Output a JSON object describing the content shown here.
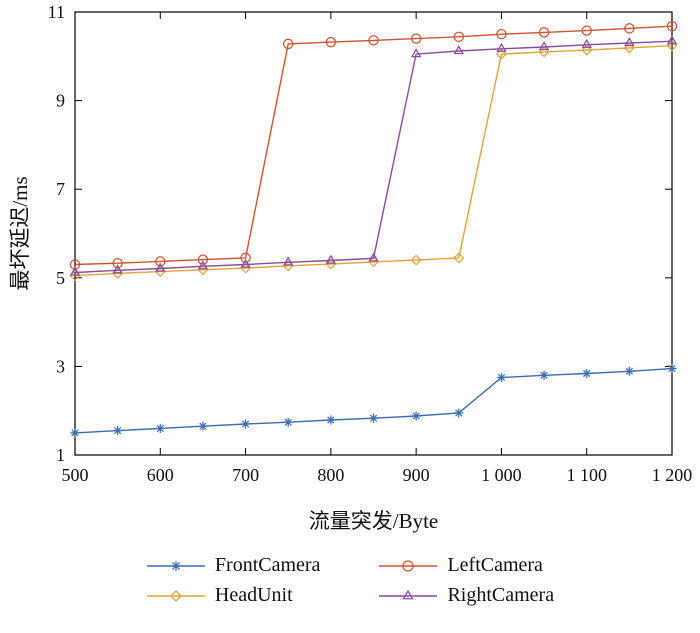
{
  "figure": {
    "background": "#ffffff",
    "axis_color": "#000000"
  },
  "chart_data": {
    "type": "line",
    "title": "",
    "xlabel": "流量突发/Byte",
    "ylabel": "最坏延迟/ms",
    "xlim": [
      500,
      1200
    ],
    "ylim": [
      1,
      11
    ],
    "xticks": [
      500,
      600,
      700,
      800,
      900,
      1000,
      1100,
      1200
    ],
    "xtick_labels": [
      "500",
      "600",
      "700",
      "800",
      "900",
      "1 000",
      "1 100",
      "1 200"
    ],
    "yticks": [
      1,
      3,
      5,
      7,
      9,
      11
    ],
    "ytick_labels": [
      "1",
      "3",
      "5",
      "7",
      "9",
      "11"
    ],
    "grid": false,
    "legend_position": "bottom",
    "x": [
      500,
      550,
      600,
      650,
      700,
      750,
      800,
      850,
      900,
      950,
      1000,
      1050,
      1100,
      1150,
      1200
    ],
    "series": [
      {
        "name": "FrontCamera",
        "color": "#3c6db4",
        "marker": "asterisk",
        "values": [
          1.5,
          1.55,
          1.6,
          1.65,
          1.7,
          1.74,
          1.79,
          1.83,
          1.88,
          1.95,
          2.75,
          2.8,
          2.84,
          2.89,
          2.95
        ]
      },
      {
        "name": "LeftCamera",
        "color": "#d0532f",
        "marker": "circle",
        "values": [
          5.3,
          5.33,
          5.37,
          5.41,
          5.45,
          10.28,
          10.32,
          10.36,
          10.4,
          10.44,
          10.5,
          10.54,
          10.58,
          10.63,
          10.68
        ]
      },
      {
        "name": "HeadUnit",
        "color": "#e2a33b",
        "marker": "diamond",
        "values": [
          5.05,
          5.1,
          5.14,
          5.18,
          5.22,
          5.27,
          5.31,
          5.36,
          5.4,
          5.45,
          10.05,
          10.1,
          10.14,
          10.19,
          10.24
        ]
      },
      {
        "name": "RightCamera",
        "color": "#8a4ba0",
        "marker": "triangle",
        "values": [
          5.12,
          5.17,
          5.21,
          5.26,
          5.3,
          5.35,
          5.39,
          5.44,
          10.05,
          10.12,
          10.17,
          10.21,
          10.26,
          10.3,
          10.34
        ]
      }
    ]
  }
}
